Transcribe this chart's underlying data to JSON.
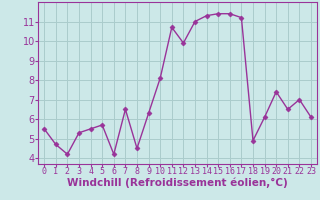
{
  "x": [
    0,
    1,
    2,
    3,
    4,
    5,
    6,
    7,
    8,
    9,
    10,
    11,
    12,
    13,
    14,
    15,
    16,
    17,
    18,
    19,
    20,
    21,
    22,
    23
  ],
  "y": [
    5.5,
    4.7,
    4.2,
    5.3,
    5.5,
    5.7,
    4.2,
    6.5,
    4.5,
    6.3,
    8.1,
    10.7,
    9.9,
    11.0,
    11.3,
    11.4,
    11.4,
    11.2,
    4.9,
    6.1,
    7.4,
    6.5,
    7.0,
    6.1
  ],
  "line_color": "#993399",
  "bg_color": "#cce8e8",
  "grid_color": "#aacccc",
  "xlabel": "Windchill (Refroidissement éolien,°C)",
  "xlabel_color": "#993399",
  "yticks": [
    4,
    5,
    6,
    7,
    8,
    9,
    10,
    11
  ],
  "xtick_labels": [
    "0",
    "1",
    "2",
    "3",
    "4",
    "5",
    "6",
    "7",
    "8",
    "9",
    "10",
    "11",
    "12",
    "13",
    "14",
    "15",
    "16",
    "17",
    "18",
    "19",
    "20",
    "21",
    "22",
    "23"
  ],
  "ylim": [
    3.7,
    12.0
  ],
  "xlim": [
    -0.5,
    23.5
  ],
  "marker": "D",
  "marker_size": 2.5,
  "line_width": 1.0,
  "tick_fontsize": 6,
  "xlabel_fontsize": 7.5,
  "ytick_fontsize": 7
}
